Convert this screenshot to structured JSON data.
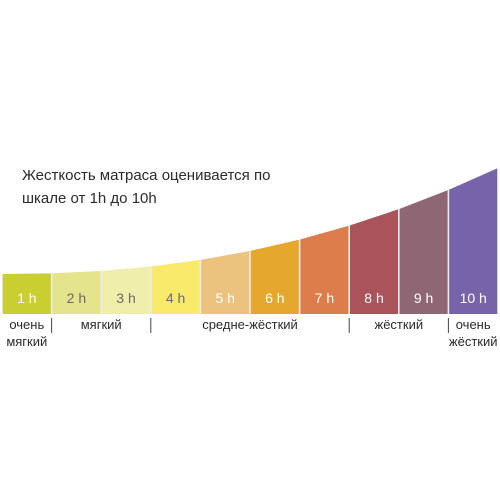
{
  "heading": {
    "line1": "Жесткость матраса оценивается по",
    "line2": "шкале от 1h до 10h"
  },
  "segments": [
    {
      "label": "1 h",
      "color": "#c9cf2e",
      "text_color": "#ffffff"
    },
    {
      "label": "2 h",
      "color": "#e4e48c",
      "text_color": "#6a6a6a"
    },
    {
      "label": "3 h",
      "color": "#efeeaa",
      "text_color": "#6a6a6a"
    },
    {
      "label": "4 h",
      "color": "#f9ea6c",
      "text_color": "#6a6a6a"
    },
    {
      "label": "5 h",
      "color": "#ecc37e",
      "text_color": "#ffffff"
    },
    {
      "label": "6 h",
      "color": "#e6a72d",
      "text_color": "#ffffff"
    },
    {
      "label": "7 h",
      "color": "#de7d4c",
      "text_color": "#ffffff"
    },
    {
      "label": "8 h",
      "color": "#a8545a",
      "text_color": "#ffffff"
    },
    {
      "label": "9 h",
      "color": "#8e6674",
      "text_color": "#ffffff"
    },
    {
      "label": "10 h",
      "color": "#7663a8",
      "text_color": "#ffffff"
    }
  ],
  "categories": [
    {
      "lines": [
        "очень",
        "мягкий"
      ]
    },
    {
      "lines": [
        "мягкий"
      ]
    },
    {
      "lines": [
        "средне-жёсткий"
      ]
    },
    {
      "lines": [
        "жёсткий"
      ]
    },
    {
      "lines": [
        "очень",
        "жёсткий"
      ]
    }
  ],
  "colors": {
    "background_curve": "#ececed",
    "text": "#2b2b2b"
  }
}
